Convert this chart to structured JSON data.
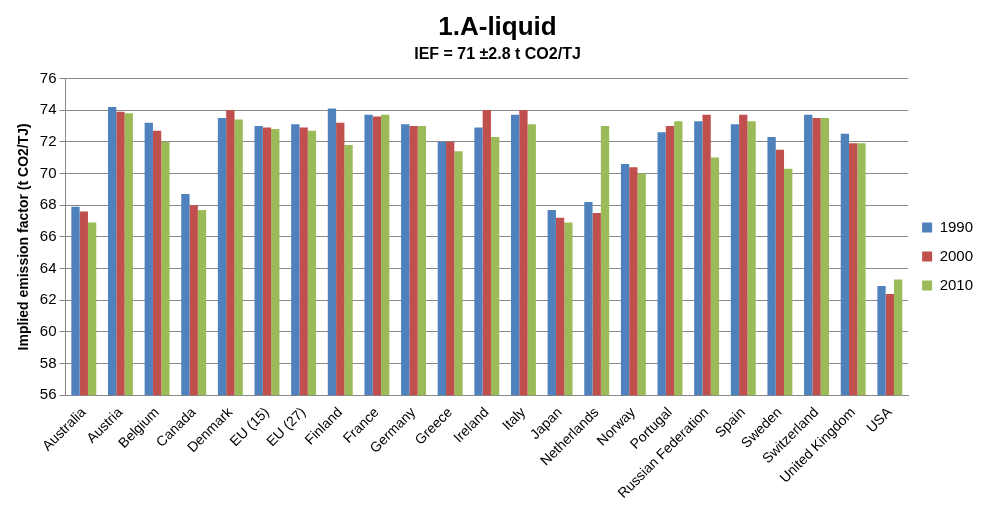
{
  "chart_data": {
    "type": "bar",
    "title": "1.A-liquid",
    "subtitle": "IEF = 71 ±2.8 t CO2/TJ",
    "ylabel": "Implied emission factor (t CO2/TJ)",
    "categories": [
      "Australia",
      "Austria",
      "Belgium",
      "Canada",
      "Denmark",
      "EU (15)",
      "EU (27)",
      "Finland",
      "France",
      "Germany",
      "Greece",
      "Ireland",
      "Italy",
      "Japan",
      "Netherlands",
      "Norway",
      "Portugal",
      "Russian Federation",
      "Spain",
      "Sweden",
      "Switzerland",
      "United Kingdom",
      "USA"
    ],
    "series": [
      {
        "name": "1990",
        "color": "#4f81bd",
        "values": [
          67.9,
          74.2,
          73.2,
          68.7,
          73.5,
          73.0,
          73.1,
          74.1,
          73.7,
          73.1,
          72.0,
          72.9,
          73.7,
          67.7,
          68.2,
          70.6,
          72.6,
          73.3,
          73.1,
          72.3,
          73.7,
          72.5,
          62.9
        ]
      },
      {
        "name": "2000",
        "color": "#c0504d",
        "values": [
          67.6,
          73.9,
          72.7,
          68.0,
          74.0,
          72.9,
          72.9,
          73.2,
          73.6,
          73.0,
          72.0,
          74.0,
          74.0,
          67.2,
          67.5,
          70.4,
          73.0,
          73.7,
          73.7,
          71.5,
          73.5,
          71.9,
          62.4
        ]
      },
      {
        "name": "2010",
        "color": "#9bbb59",
        "values": [
          66.9,
          73.8,
          72.0,
          67.7,
          73.4,
          72.8,
          72.7,
          71.8,
          73.7,
          73.0,
          71.4,
          72.3,
          73.1,
          66.9,
          73.0,
          70.0,
          73.3,
          71.0,
          73.3,
          70.3,
          73.5,
          71.9,
          63.3
        ]
      }
    ],
    "ylim": [
      56,
      76
    ],
    "yticks": [
      56,
      58,
      60,
      62,
      64,
      66,
      68,
      70,
      72,
      74,
      76
    ],
    "grid": "y",
    "legend": "right"
  }
}
